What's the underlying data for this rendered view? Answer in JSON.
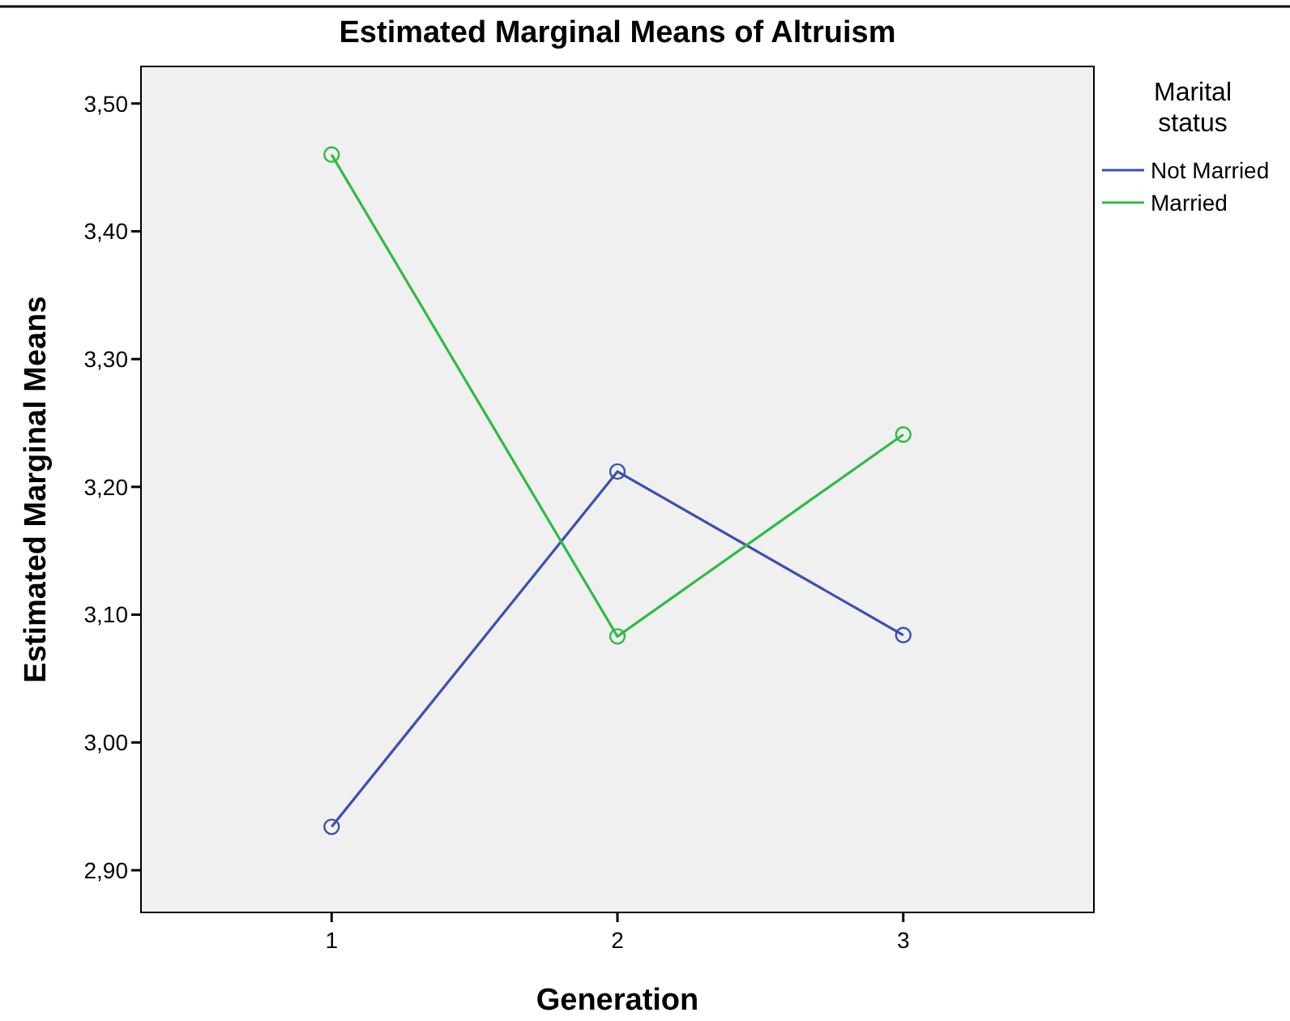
{
  "chart_data": {
    "type": "line",
    "title": "Estimated Marginal Means of Altruism",
    "xlabel": "Generation",
    "ylabel": "Estimated Marginal Means",
    "legend_title": "Marital status",
    "categories": [
      "1",
      "2",
      "3"
    ],
    "series": [
      {
        "name": "Not Married",
        "color": "#3d50b0",
        "values": [
          2.934,
          3.212,
          3.084
        ]
      },
      {
        "name": "Married",
        "color": "#2fbb45",
        "values": [
          3.46,
          3.083,
          3.241
        ]
      }
    ],
    "ylim": [
      2.867,
      3.529
    ],
    "yticks": [
      {
        "value": 2.9,
        "label": "2,90"
      },
      {
        "value": 3.0,
        "label": "3,00"
      },
      {
        "value": 3.1,
        "label": "3,10"
      },
      {
        "value": 3.2,
        "label": "3,20"
      },
      {
        "value": 3.3,
        "label": "3,30"
      },
      {
        "value": 3.4,
        "label": "3,40"
      },
      {
        "value": 3.5,
        "label": "3,50"
      }
    ],
    "grid": false,
    "legend": "top right",
    "marker": "circle",
    "line_style": "solid"
  }
}
